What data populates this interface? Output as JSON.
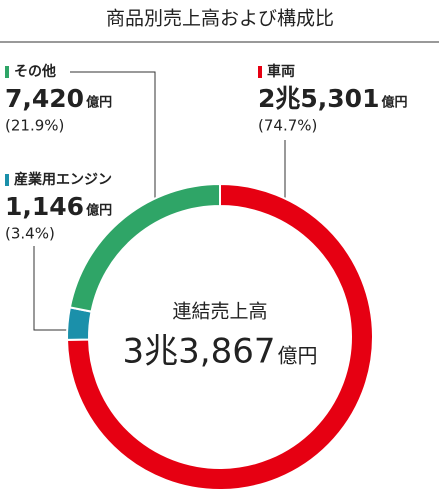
{
  "chart_data": {
    "type": "pie",
    "title": "商品別売上高および構成比",
    "categories": [
      "車両",
      "産業用エンジン",
      "その他"
    ],
    "values": [
      74.7,
      3.4,
      21.9
    ],
    "value_labels": [
      "(74.7%)",
      "(3.4%)",
      "(21.9%)"
    ],
    "amounts": [
      "2兆5,301",
      "1,146",
      "7,420"
    ],
    "unit": "億円",
    "colors": [
      "#e60012",
      "#1b90aa",
      "#2fa567"
    ],
    "center_label": "連結売上高",
    "total": "3兆3,867"
  }
}
